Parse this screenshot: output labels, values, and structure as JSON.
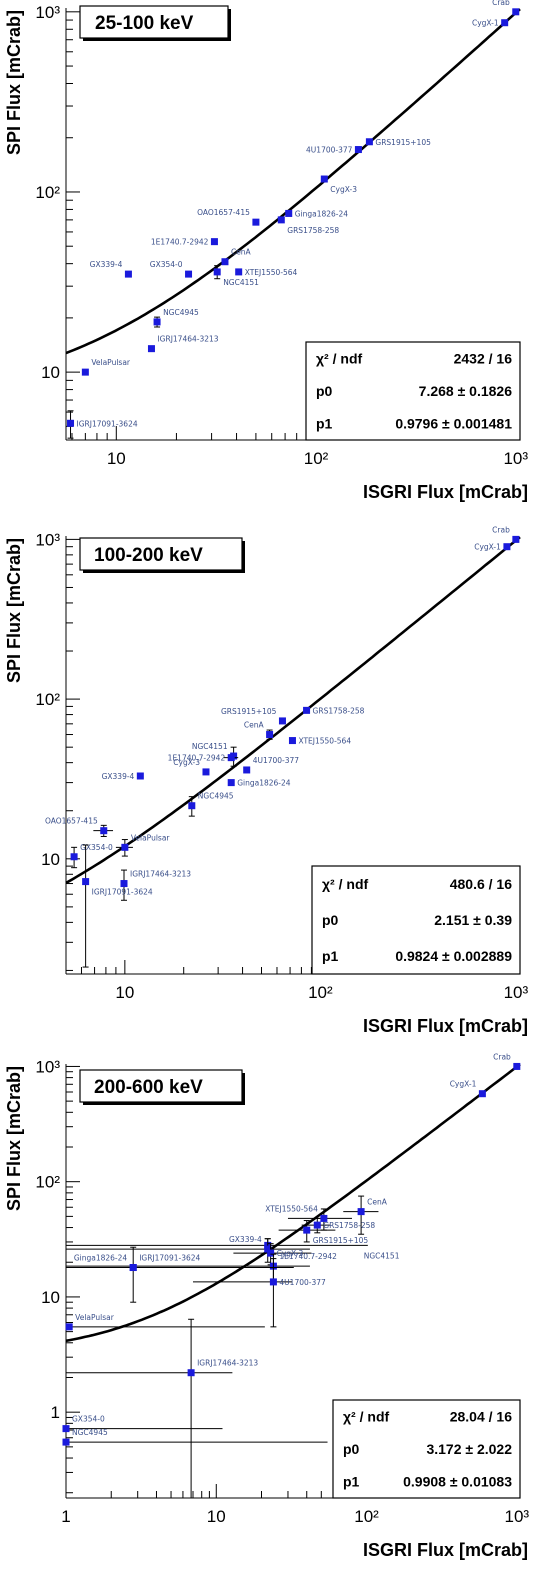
{
  "chart_data": [
    {
      "type": "scatter",
      "title": "25-100 keV",
      "xlabel": "ISGRI Flux [mCrab]",
      "ylabel": "SPI Flux [mCrab]",
      "xscale": "log",
      "yscale": "log",
      "xlim": [
        5.6,
        1050
      ],
      "ylim": [
        4.2,
        1050
      ],
      "xticks": [
        "10",
        "10²",
        "10³"
      ],
      "yticks": [
        "10",
        "10²",
        "10³"
      ],
      "fit": {
        "p0": 7.268,
        "p1": 0.9796
      },
      "stats": [
        {
          "label": "χ² / ndf",
          "value": "2432 / 16"
        },
        {
          "label": "p0",
          "value": "7.268 ± 0.1826"
        },
        {
          "label": "p1",
          "value": "0.9796 ± 0.001481"
        }
      ],
      "legend_position": "bottom-right",
      "series": [
        {
          "points": [
            {
              "label": "Crab",
              "x": 1000,
              "y": 1000,
              "lx": -1,
              "ly": -1
            },
            {
              "label": "CygX-1",
              "x": 880,
              "y": 870,
              "lx": -1,
              "ly": 0
            },
            {
              "label": "GRS1915+105",
              "x": 185,
              "y": 190,
              "lx": 1,
              "ly": 0
            },
            {
              "label": "4U1700-377",
              "x": 163,
              "y": 172,
              "lx": -1,
              "ly": 0
            },
            {
              "label": "CygX-3",
              "x": 110,
              "y": 118,
              "lx": 1,
              "ly": 1
            },
            {
              "label": "Ginga1826-24",
              "x": 73,
              "y": 76,
              "lx": 1,
              "ly": 0
            },
            {
              "label": "GRS1758-258",
              "x": 67,
              "y": 70,
              "lx": 1,
              "ly": 1
            },
            {
              "label": "OAO1657-415",
              "x": 50,
              "y": 68,
              "lx": -1,
              "ly": -1
            },
            {
              "label": "1E1740.7-2942",
              "x": 31,
              "y": 53,
              "lx": -1,
              "ly": 0
            },
            {
              "label": "CenA",
              "x": 35,
              "y": 41,
              "lx": 1,
              "ly": -1
            },
            {
              "label": "XTEJ1550-564",
              "x": 41,
              "y": 36,
              "lx": 1,
              "ly": 0
            },
            {
              "label": "GX354-0",
              "x": 23,
              "y": 35,
              "lx": -1,
              "ly": -1
            },
            {
              "label": "NGC4151",
              "x": 32,
              "y": 36,
              "lx": 1,
              "ly": 1,
              "ey": 3
            },
            {
              "label": "GX339-4",
              "x": 11.5,
              "y": 35,
              "lx": -1,
              "ly": -1
            },
            {
              "label": "NGC4945",
              "x": 16,
              "y": 19,
              "lx": 1,
              "ly": -1,
              "ey": 1.2
            },
            {
              "label": "IGRJ17464-3213",
              "x": 15,
              "y": 13.5,
              "lx": 1,
              "ly": -1
            },
            {
              "label": "VelaPulsar",
              "x": 7,
              "y": 10,
              "lx": 1,
              "ly": -1
            },
            {
              "label": "IGRJ17091-3624",
              "x": 5.9,
              "y": 5.2,
              "lx": 1,
              "ly": 0,
              "ey": 0.9
            }
          ]
        }
      ]
    },
    {
      "type": "scatter",
      "title": "100-200 keV",
      "xlabel": "ISGRI Flux [mCrab]",
      "ylabel": "SPI Flux [mCrab]",
      "xscale": "log",
      "yscale": "log",
      "xlim": [
        5,
        1050
      ],
      "ylim": [
        1.9,
        1050
      ],
      "xticks": [
        "10",
        "10²",
        "10³"
      ],
      "yticks": [
        "10",
        "10²",
        "10³"
      ],
      "fit": {
        "p0": 2.151,
        "p1": 0.9824
      },
      "stats": [
        {
          "label": "χ² / ndf",
          "value": "480.6 / 16"
        },
        {
          "label": "p0",
          "value": "2.151 ±  0.39"
        },
        {
          "label": "p1",
          "value": "0.9824 ± 0.002889"
        }
      ],
      "legend_position": "bottom-right",
      "series": [
        {
          "points": [
            {
              "label": "Crab",
              "x": 1000,
              "y": 1000,
              "lx": -1,
              "ly": -1
            },
            {
              "label": "CygX-1",
              "x": 900,
              "y": 900,
              "lx": -1,
              "ly": 0
            },
            {
              "label": "GRS1758-258",
              "x": 85,
              "y": 85,
              "lx": 1,
              "ly": 0
            },
            {
              "label": "GRS1915+105",
              "x": 64,
              "y": 73,
              "lx": -1,
              "ly": -1
            },
            {
              "label": "CenA",
              "x": 55,
              "y": 60,
              "lx": -1,
              "ly": -1,
              "ey": 4
            },
            {
              "label": "XTEJ1550-564",
              "x": 72,
              "y": 55,
              "lx": 1,
              "ly": 0
            },
            {
              "label": "NGC4151",
              "x": 36,
              "y": 44,
              "lx": -1,
              "ly": -1,
              "ey": 6
            },
            {
              "label": "1E1740.7-2942",
              "x": 35,
              "y": 43,
              "lx": -1,
              "ly": 0,
              "ex": 3
            },
            {
              "label": "4U1700-377",
              "x": 42,
              "y": 36,
              "lx": 1,
              "ly": -1
            },
            {
              "label": "CygX-3",
              "x": 26,
              "y": 35,
              "lx": -1,
              "ly": -1
            },
            {
              "label": "Ginga1826-24",
              "x": 35,
              "y": 30,
              "lx": 1,
              "ly": 0
            },
            {
              "label": "GX339-4",
              "x": 12,
              "y": 33,
              "lx": -1,
              "ly": 0
            },
            {
              "label": "NGC4945",
              "x": 22,
              "y": 21.5,
              "lx": 1,
              "ly": -1,
              "ey": 3
            },
            {
              "label": "OAO1657-415",
              "x": 7.8,
              "y": 15,
              "lx": -1,
              "ly": -1,
              "ex": 0.9,
              "ey": 1.2
            },
            {
              "label": "VelaPulsar",
              "x": 10,
              "y": 11.8,
              "lx": 1,
              "ly": -1,
              "ex": 1,
              "ey": 1.4
            },
            {
              "label": "GX354-0",
              "x": 5.5,
              "y": 10.3,
              "lx": 1,
              "ly": -1,
              "ey": 1.5
            },
            {
              "label": "IGRJ17464-3213",
              "x": 9.9,
              "y": 7,
              "lx": 1,
              "ly": -1,
              "ey": 1.5
            },
            {
              "label": "IGRJ17091-3624",
              "x": 6.3,
              "y": 7.2,
              "lx": 1,
              "ly": 1,
              "ey": 5,
              "eylo": 5.1
            }
          ]
        }
      ]
    },
    {
      "type": "scatter",
      "title": "200-600 keV",
      "xlabel": "ISGRI Flux [mCrab]",
      "ylabel": "SPI Flux [mCrab]",
      "xscale": "log",
      "yscale": "log",
      "xlim": [
        1,
        1050
      ],
      "ylim": [
        0.18,
        1050
      ],
      "xticks": [
        "1",
        "10",
        "10²",
        "10³"
      ],
      "yticks": [
        "1",
        "10",
        "10²",
        "10³"
      ],
      "fit": {
        "p0": 3.172,
        "p1": 0.9908
      },
      "stats": [
        {
          "label": "χ² / ndf",
          "value": "28.04 / 16"
        },
        {
          "label": "p0",
          "value": "3.172 ± 2.022"
        },
        {
          "label": "p1",
          "value": "0.9908 ± 0.01083"
        }
      ],
      "legend_position": "bottom-right",
      "series": [
        {
          "points": [
            {
              "label": "Crab",
              "x": 1000,
              "y": 1000,
              "lx": -1,
              "ly": -1
            },
            {
              "label": "CygX-1",
              "x": 590,
              "y": 580,
              "lx": -1,
              "ly": -1
            },
            {
              "label": "CenA",
              "x": 92,
              "y": 55,
              "lx": 1,
              "ly": -1,
              "exlo": 22,
              "exhi": 28,
              "ey": 20
            },
            {
              "label": "XTEJ1550-564",
              "x": 52,
              "y": 48,
              "lx": -1,
              "ly": -1,
              "exlo": 22,
              "exhi": 28,
              "ey": 10
            },
            {
              "label": "GRS1758-258",
              "x": 47,
              "y": 42,
              "lx": 1,
              "ly": 0,
              "exlo": 10,
              "exhi": 10,
              "ey": 6
            },
            {
              "label": "GRS1915+105",
              "x": 40,
              "y": 38,
              "lx": 1,
              "ly": 1,
              "exlo": 14,
              "exhi": 22,
              "ey": 8
            },
            {
              "label": "NGC4151",
              "x": 22,
              "y": 28,
              "lx": 1,
              "ly": 1,
              "exlo": 21,
              "exhi": 80,
              "ey": 4,
              "lxoff": 90
            },
            {
              "label": "GX339-4",
              "x": 22,
              "y": 26,
              "lx": -1,
              "ly": -1,
              "exlo": 21,
              "exhi": 20,
              "ey": 6
            },
            {
              "label": "CygX-3",
              "x": 23,
              "y": 24,
              "lx": 1,
              "ly": 0,
              "exlo": 10,
              "exhi": 20,
              "ey": 5
            },
            {
              "label": "1E1740.7-2942",
              "x": 24,
              "y": 18.5,
              "lx": 1,
              "ly": -1,
              "exlo": 23,
              "exhi": 18,
              "ey": 5
            },
            {
              "label": "Ginga1826-24",
              "x": 2.8,
              "y": 18,
              "lx": -1,
              "ly": -1,
              "exlo": 1.8,
              "exhi": 30,
              "ey": 9
            },
            {
              "label": "IGRJ17091-3624",
              "x": 2.8,
              "y": 18,
              "lx": 1,
              "ly": -1
            },
            {
              "label": "4U1700-377",
              "x": 24,
              "y": 13.5,
              "lx": 1,
              "ly": 0,
              "exlo": 17,
              "exhi": 8,
              "ey": 8
            },
            {
              "label": "VelaPulsar",
              "x": 1.05,
              "y": 5.5,
              "lx": 1,
              "ly": -1,
              "exlo": 0.05,
              "exhi": 20,
              "ey": 0
            },
            {
              "label": "IGRJ17464-3213",
              "x": 6.8,
              "y": 2.2,
              "lx": 1,
              "ly": -1,
              "exlo": 5.8,
              "exhi": 6,
              "ey": 4.2,
              "eylo": 2.19
            },
            {
              "label": "GX354-0",
              "x": 1,
              "y": 0.72,
              "lx": 1,
              "ly": -1,
              "exlo": 0,
              "exhi": 10,
              "ey": 0
            },
            {
              "label": "NGC4945",
              "x": 1,
              "y": 0.55,
              "lx": 1,
              "ly": -1,
              "exlo": 0,
              "exhi": 54,
              "ey": 0
            }
          ]
        }
      ]
    }
  ]
}
